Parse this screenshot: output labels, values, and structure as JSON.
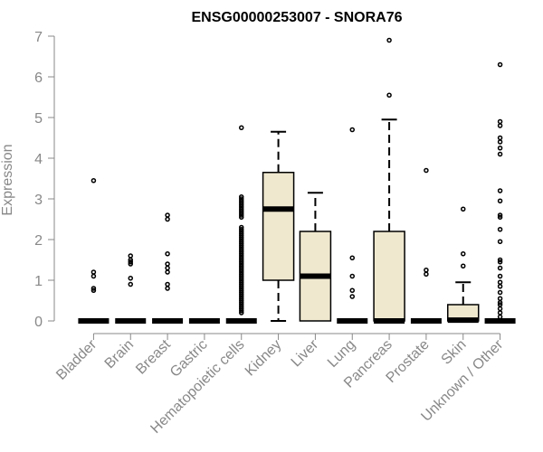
{
  "chart_data": {
    "type": "boxplot",
    "title": "ENSG00000253007 - SNORA76",
    "xlabel": "",
    "ylabel": "Expression",
    "ylim": [
      0,
      7
    ],
    "yticks": [
      0,
      1,
      2,
      3,
      4,
      5,
      6,
      7
    ],
    "box_fill": "#efe8cf",
    "outline_color": "#000000",
    "axis_color": "#888888",
    "categories": [
      "Bladder",
      "Brain",
      "Breast",
      "Gastric",
      "Hematopoietic cells",
      "Kidney",
      "Liver",
      "Lung",
      "Pancreas",
      "Prostate",
      "Skin",
      "Unknown / Other"
    ],
    "boxes": [
      {
        "name": "Bladder",
        "whisker_low": 0,
        "q1": 0,
        "median": 0,
        "q3": 0,
        "whisker_high": 0,
        "outliers": [
          3.45,
          1.2,
          1.1,
          0.8,
          0.75
        ]
      },
      {
        "name": "Brain",
        "whisker_low": 0,
        "q1": 0,
        "median": 0,
        "q3": 0,
        "whisker_high": 0,
        "outliers": [
          1.6,
          1.5,
          1.45,
          1.4,
          1.05,
          0.9
        ]
      },
      {
        "name": "Breast",
        "whisker_low": 0,
        "q1": 0,
        "median": 0,
        "q3": 0,
        "whisker_high": 0,
        "outliers": [
          2.6,
          2.5,
          1.65,
          1.4,
          1.3,
          1.2,
          0.9,
          0.8
        ]
      },
      {
        "name": "Gastric",
        "whisker_low": 0,
        "q1": 0,
        "median": 0,
        "q3": 0,
        "whisker_high": 0,
        "outliers": []
      },
      {
        "name": "Hematopoietic cells",
        "whisker_low": 0,
        "q1": 0,
        "median": 0,
        "q3": 0,
        "whisker_high": 0,
        "outliers": [
          4.75,
          3.05,
          3.0,
          2.95,
          2.9,
          2.85,
          2.8,
          2.75,
          2.7,
          2.65,
          2.6,
          2.55,
          2.3,
          2.25,
          2.2,
          2.15,
          2.1,
          2.05,
          2.0,
          1.95,
          1.9,
          1.85,
          1.8,
          1.75,
          1.7,
          1.65,
          1.6,
          1.55,
          1.5,
          1.45,
          1.4,
          1.35,
          1.3,
          1.25,
          1.2,
          1.15,
          1.1,
          1.05,
          1.0,
          0.95,
          0.9,
          0.85,
          0.8,
          0.75,
          0.7,
          0.65,
          0.6,
          0.55,
          0.5,
          0.45,
          0.4,
          0.35,
          0.3,
          0.25,
          0.2
        ]
      },
      {
        "name": "Kidney",
        "whisker_low": 0,
        "q1": 1.0,
        "median": 2.75,
        "q3": 3.65,
        "whisker_high": 4.65,
        "outliers": []
      },
      {
        "name": "Liver",
        "whisker_low": 0,
        "q1": 0,
        "median": 1.1,
        "q3": 2.2,
        "whisker_high": 3.15,
        "outliers": []
      },
      {
        "name": "Lung",
        "whisker_low": 0,
        "q1": 0,
        "median": 0,
        "q3": 0,
        "whisker_high": 0,
        "outliers": [
          4.7,
          1.55,
          1.1,
          0.75,
          0.6
        ]
      },
      {
        "name": "Pancreas",
        "whisker_low": 0,
        "q1": 0,
        "median": 0,
        "q3": 2.2,
        "whisker_high": 4.95,
        "outliers": [
          6.9,
          5.55
        ]
      },
      {
        "name": "Prostate",
        "whisker_low": 0,
        "q1": 0,
        "median": 0,
        "q3": 0,
        "whisker_high": 0,
        "outliers": [
          3.7,
          1.25,
          1.15
        ]
      },
      {
        "name": "Skin",
        "whisker_low": 0,
        "q1": 0,
        "median": 0.02,
        "q3": 0.4,
        "whisker_high": 0.95,
        "outliers": [
          2.75,
          1.65,
          1.35
        ]
      },
      {
        "name": "Unknown / Other",
        "whisker_low": 0,
        "q1": 0,
        "median": 0,
        "q3": 0,
        "whisker_high": 0,
        "outliers": [
          6.3,
          4.9,
          4.8,
          4.5,
          4.4,
          4.25,
          4.1,
          3.2,
          2.95,
          2.6,
          2.55,
          2.25,
          1.95,
          1.5,
          1.45,
          1.3,
          1.1,
          0.95,
          0.85,
          0.7,
          0.55,
          0.45,
          0.4,
          0.3,
          0.2,
          0.1
        ]
      }
    ]
  }
}
